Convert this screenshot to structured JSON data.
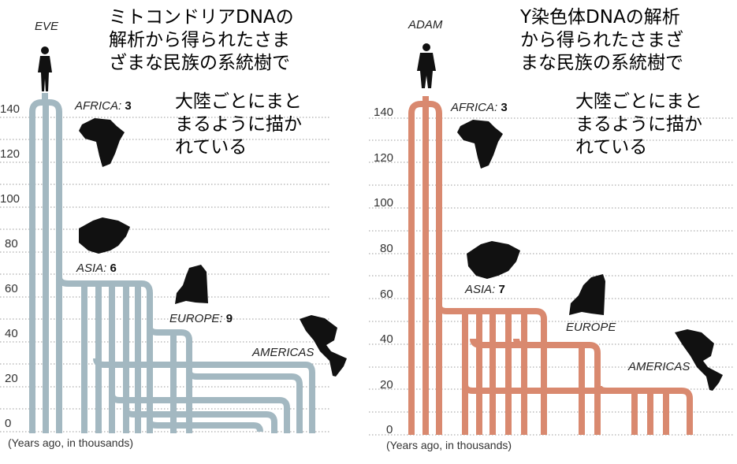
{
  "left_panel": {
    "ancestor_label": "EVE",
    "y_ticks": [
      "0",
      "20",
      "40",
      "60",
      "80",
      "100",
      "120",
      "140"
    ],
    "axis_caption": "(Years ago, in thousands)",
    "regions": {
      "africa": {
        "label": "AFRICA:",
        "count": "3"
      },
      "asia": {
        "label": "ASIA:",
        "count": "6"
      },
      "europe": {
        "label": "EUROPE:",
        "count": "9"
      },
      "americas": {
        "label": "AMERICAS"
      }
    },
    "title_note": "ミトコンドリアDNAの\n解析から得られたさま\nざまな民族の系統樹で",
    "sub_note": "大陸ごとにまと\nまるように描か\nれている",
    "color": "#a3b8c1"
  },
  "right_panel": {
    "ancestor_label": "ADAM",
    "y_ticks": [
      "0",
      "20",
      "40",
      "60",
      "80",
      "100",
      "120",
      "140"
    ],
    "axis_caption": "(Years ago, in thousands)",
    "regions": {
      "africa": {
        "label": "AFRICA:",
        "count": "3"
      },
      "asia": {
        "label": "ASIA:",
        "count": "7"
      },
      "europe": {
        "label": "EUROPE"
      },
      "americas": {
        "label": "AMERICAS"
      }
    },
    "title_note": "Y染色体DNAの解析\nから得られたさまざ\nまな民族の系統樹で",
    "sub_note": "大陸ごとにまと\nまるように描か\nれている",
    "color": "#d9896f"
  }
}
